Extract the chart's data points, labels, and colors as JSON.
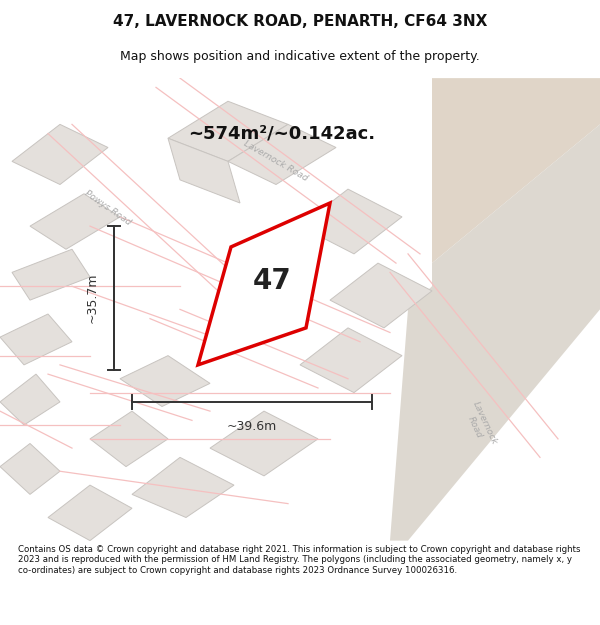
{
  "title": "47, LAVERNOCK ROAD, PENARTH, CF64 3NX",
  "subtitle": "Map shows position and indicative extent of the property.",
  "footer": "Contains OS data © Crown copyright and database right 2021. This information is subject to Crown copyright and database rights 2023 and is reproduced with the permission of HM Land Registry. The polygons (including the associated geometry, namely x, y co-ordinates) are subject to Crown copyright and database rights 2023 Ordnance Survey 100026316.",
  "area_label": "~574m²/~0.142ac.",
  "number_label": "47",
  "dim_width_label": "~39.6m",
  "dim_height_label": "~35.7m",
  "bg_color": "#f5f0eb",
  "map_bg": "#f0ece8",
  "road_color_light": "#f5c0c0",
  "building_fill": "#e8e4e0",
  "building_edge": "#cccccc",
  "red_polygon_color": "#dd0000",
  "street_label_color": "#aaaaaa",
  "dim_color": "#333333",
  "title_color": "#111111",
  "footer_color": "#111111",
  "corner_tan_fill": "#e0d5c8"
}
